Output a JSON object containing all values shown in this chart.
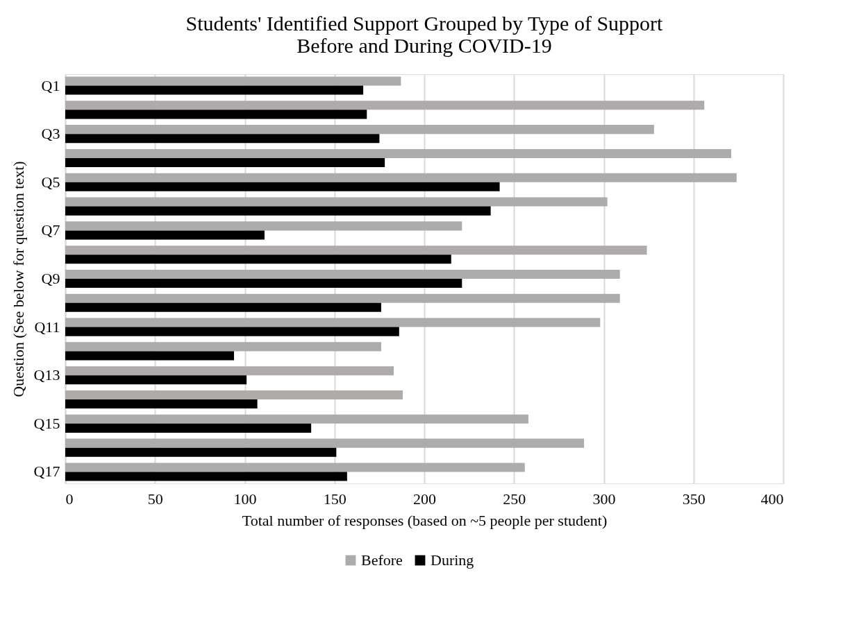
{
  "chart_data": {
    "type": "bar",
    "orientation": "horizontal",
    "title": "Students' Identified Support Grouped by Type of Support\nBefore and During COVID-19",
    "xlabel": "Total number of responses (based on ~5 people per student)",
    "ylabel": "Question (See below  for question text)",
    "categories": [
      "Q1",
      null,
      "Q3",
      null,
      "Q5",
      null,
      "Q7",
      null,
      "Q9",
      null,
      "Q11",
      null,
      "Q13",
      null,
      "Q15",
      null,
      "Q17"
    ],
    "series": [
      {
        "name": "Before",
        "color": "#aeabab",
        "values": [
          187,
          356,
          328,
          371,
          374,
          302,
          221,
          324,
          309,
          309,
          298,
          176,
          183,
          188,
          258,
          289,
          256
        ]
      },
      {
        "name": "During",
        "color": "#000000",
        "values": [
          166,
          168,
          175,
          178,
          242,
          237,
          111,
          215,
          221,
          176,
          186,
          94,
          101,
          107,
          137,
          151,
          157
        ]
      }
    ],
    "xlim": [
      0,
      400
    ],
    "xticks": [
      0,
      50,
      100,
      150,
      200,
      250,
      300,
      350,
      400
    ],
    "grid": "x",
    "legend": "bottom"
  }
}
